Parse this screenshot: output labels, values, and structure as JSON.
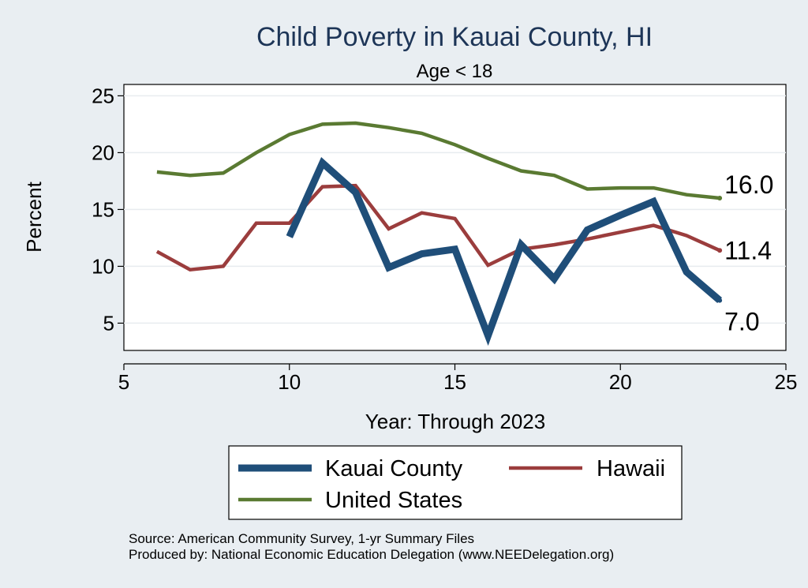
{
  "chart_data": {
    "type": "line",
    "title": "Child Poverty in Kauai County, HI",
    "subtitle": "Age < 18",
    "xlabel": "Year: Through 2023",
    "ylabel": "Percent",
    "xlim": [
      5,
      25
    ],
    "ylim": [
      2.6,
      26.0
    ],
    "xticks": [
      5,
      10,
      15,
      20,
      25
    ],
    "yticks": [
      5,
      10,
      15,
      20,
      25
    ],
    "series": [
      {
        "name": "Kauai County",
        "color": "#1f4e79",
        "x": [
          10,
          11,
          12,
          13,
          14,
          15,
          16,
          17,
          18,
          19,
          20,
          21,
          22,
          23
        ],
        "values": [
          12.6,
          19.1,
          16.5,
          9.9,
          11.1,
          11.5,
          3.9,
          11.9,
          8.9,
          13.2,
          14.5,
          15.7,
          9.5,
          7.0
        ]
      },
      {
        "name": "Hawaii",
        "color": "#9b3d3d",
        "x": [
          6,
          7,
          8,
          9,
          10,
          11,
          12,
          13,
          14,
          15,
          16,
          17,
          18,
          19,
          20,
          21,
          22,
          23
        ],
        "values": [
          11.3,
          9.7,
          10.0,
          13.8,
          13.8,
          17.0,
          17.1,
          13.3,
          14.7,
          14.2,
          10.1,
          11.5,
          11.9,
          12.4,
          13.0,
          13.6,
          12.7,
          11.4
        ]
      },
      {
        "name": "United States",
        "color": "#5a7a32",
        "x": [
          6,
          7,
          8,
          9,
          10,
          11,
          12,
          13,
          14,
          15,
          16,
          17,
          18,
          19,
          20,
          21,
          22,
          23
        ],
        "values": [
          18.3,
          18.0,
          18.2,
          20.0,
          21.6,
          22.5,
          22.6,
          22.2,
          21.7,
          20.7,
          19.5,
          18.4,
          18.0,
          16.8,
          16.9,
          16.9,
          16.3,
          16.0
        ]
      }
    ],
    "end_labels": [
      {
        "series": "United States",
        "text": "16.0"
      },
      {
        "series": "Hawaii",
        "text": "11.4"
      },
      {
        "series": "Kauai County",
        "text": "7.0"
      }
    ],
    "legend": {
      "position": "bottom",
      "entries": [
        "Kauai County",
        "Hawaii",
        "United States"
      ]
    }
  },
  "footer": {
    "source": "Source: American Community Survey, 1-yr Summary Files",
    "produced_by": "Produced by: National Economic Education Delegation (www.NEEDelegation.org)"
  }
}
